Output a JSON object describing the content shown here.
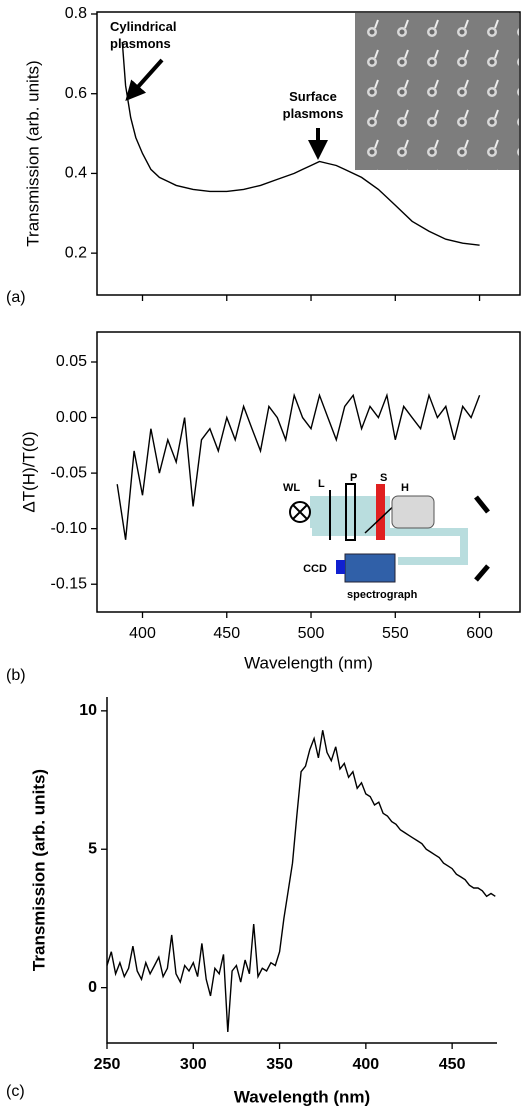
{
  "chart_data": [
    {
      "type": "line",
      "ylabel": "Transmission (arb. units)",
      "panel_label": "(a)",
      "color": "#000000",
      "annotations": [
        "Cylindrical plasmons",
        "Surface plasmons"
      ],
      "x": [
        388,
        390,
        393,
        396,
        400,
        405,
        410,
        415,
        420,
        430,
        440,
        450,
        460,
        470,
        480,
        490,
        495,
        500,
        505,
        510,
        515,
        520,
        530,
        540,
        550,
        560,
        570,
        580,
        590,
        600
      ],
      "values": [
        0.73,
        0.62,
        0.54,
        0.49,
        0.45,
        0.41,
        0.39,
        0.38,
        0.37,
        0.36,
        0.355,
        0.355,
        0.36,
        0.37,
        0.385,
        0.4,
        0.41,
        0.42,
        0.43,
        0.425,
        0.42,
        0.41,
        0.39,
        0.36,
        0.32,
        0.28,
        0.255,
        0.235,
        0.225,
        0.22
      ],
      "xlim": [
        373,
        624
      ],
      "ylim": [
        0.095,
        0.805
      ],
      "yticks": [
        0.2,
        0.4,
        0.6,
        0.8
      ]
    },
    {
      "type": "line",
      "xlabel": "Wavelength (nm)",
      "ylabel": "ΔT(H)/T(0)",
      "panel_label": "(b)",
      "color": "#000000",
      "inset_labels": [
        "WL",
        "L",
        "P",
        "S",
        "H",
        "CCD",
        "spectrograph"
      ],
      "x": [
        385,
        390,
        395,
        400,
        405,
        410,
        415,
        420,
        425,
        430,
        435,
        440,
        445,
        450,
        455,
        460,
        465,
        470,
        475,
        480,
        485,
        490,
        495,
        500,
        505,
        510,
        515,
        520,
        525,
        530,
        535,
        540,
        545,
        550,
        555,
        560,
        565,
        570,
        575,
        580,
        585,
        590,
        595,
        600
      ],
      "values": [
        -0.06,
        -0.11,
        -0.03,
        -0.07,
        -0.01,
        -0.05,
        -0.02,
        -0.04,
        0.0,
        -0.08,
        -0.02,
        -0.01,
        -0.03,
        0.0,
        -0.02,
        0.01,
        -0.01,
        -0.03,
        0.01,
        0.0,
        -0.02,
        0.02,
        0.0,
        -0.01,
        0.02,
        0.0,
        -0.02,
        0.01,
        0.02,
        -0.01,
        0.01,
        0.0,
        0.02,
        -0.02,
        0.01,
        0.0,
        -0.01,
        0.02,
        0.0,
        0.01,
        -0.02,
        0.01,
        0.0,
        0.02
      ],
      "xlim": [
        373,
        624
      ],
      "ylim": [
        -0.175,
        0.077
      ],
      "xticks": [
        400,
        450,
        500,
        550,
        600
      ],
      "yticks": [
        0.05,
        {
          "value": 0,
          "label": "0.00"
        },
        -0.05,
        {
          "value": -0.1,
          "label": "-0.10"
        },
        -0.15
      ]
    },
    {
      "type": "line",
      "xlabel": "Wavelength (nm)",
      "ylabel": "Transmission (arb. units)",
      "panel_label": "(c)",
      "color": "#000000",
      "x": [
        250,
        252.5,
        255,
        257.5,
        260,
        262.5,
        265,
        267.5,
        270,
        272.5,
        275,
        277.5,
        280,
        282.5,
        285,
        287.5,
        290,
        292.5,
        295,
        297.5,
        300,
        302.5,
        305,
        307.5,
        310,
        312.5,
        315,
        317.5,
        320,
        322.5,
        325,
        327.5,
        330,
        332.5,
        335,
        337.5,
        340,
        342.5,
        345,
        347.5,
        350,
        352.5,
        355,
        357.5,
        360,
        362.5,
        365,
        367.5,
        370,
        372.5,
        375,
        377.5,
        380,
        382.5,
        385,
        387.5,
        390,
        392.5,
        395,
        397.5,
        400,
        402.5,
        405,
        407.5,
        410,
        412.5,
        415,
        417.5,
        420,
        422.5,
        425,
        427.5,
        430,
        432.5,
        435,
        437.5,
        440,
        442.5,
        445,
        447.5,
        450,
        452.5,
        455,
        457.5,
        460,
        462.5,
        465,
        467.5,
        470,
        472.5,
        475
      ],
      "values": [
        0.8,
        1.3,
        0.5,
        0.9,
        0.4,
        0.7,
        1.5,
        0.6,
        0.3,
        0.9,
        0.5,
        0.8,
        1.1,
        0.4,
        0.7,
        1.9,
        0.5,
        0.2,
        0.8,
        0.6,
        0.9,
        0.4,
        1.6,
        0.3,
        -0.3,
        0.7,
        0.5,
        1.2,
        -1.6,
        0.6,
        0.8,
        0.2,
        1.0,
        0.5,
        2.3,
        0.4,
        0.7,
        0.6,
        0.9,
        0.8,
        1.3,
        2.5,
        3.5,
        4.5,
        6.2,
        7.8,
        8.0,
        8.6,
        9.0,
        8.3,
        9.3,
        8.5,
        8.2,
        8.7,
        7.9,
        8.1,
        7.6,
        7.8,
        7.2,
        7.4,
        7.0,
        6.9,
        6.6,
        6.7,
        6.3,
        6.2,
        6.0,
        5.9,
        5.7,
        5.6,
        5.5,
        5.4,
        5.3,
        5.2,
        5.0,
        4.9,
        4.8,
        4.7,
        4.5,
        4.4,
        4.3,
        4.1,
        4.0,
        3.9,
        3.7,
        3.6,
        3.6,
        3.5,
        3.3,
        3.4,
        3.3
      ],
      "xlim": [
        250,
        476
      ],
      "ylim": [
        -2,
        10.5
      ],
      "xticks": [
        250,
        300,
        350,
        400,
        450
      ],
      "yticks": [
        0,
        5,
        10
      ]
    }
  ]
}
